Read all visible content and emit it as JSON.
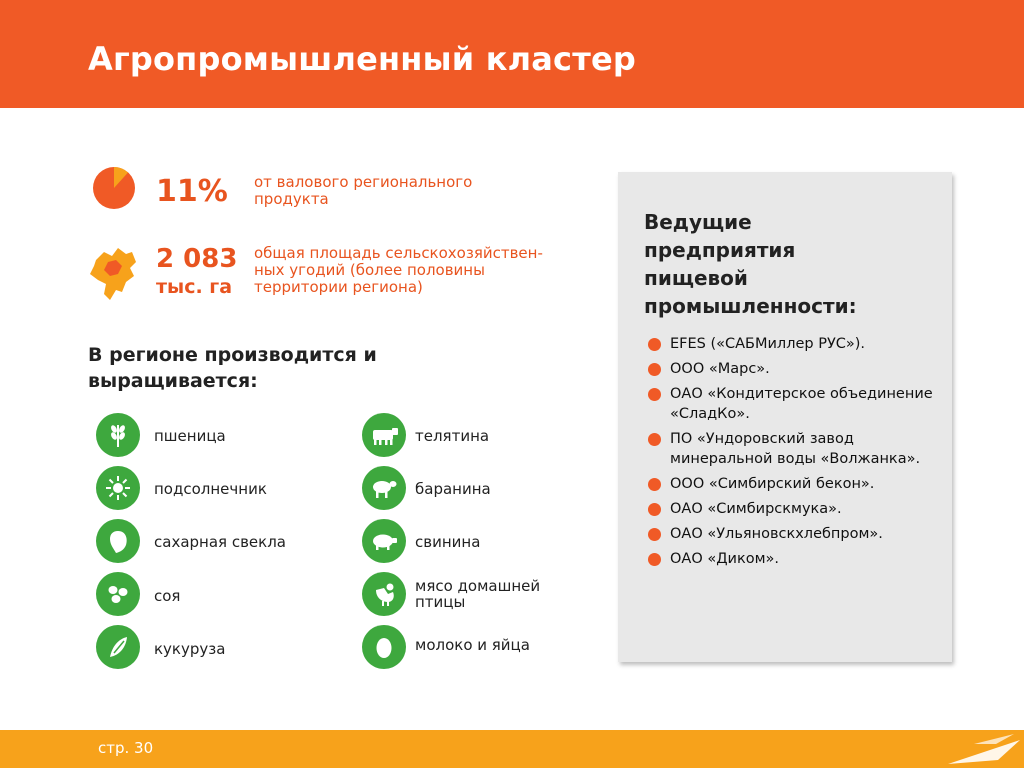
{
  "header": {
    "title": "Агропромышленный кластер"
  },
  "stats": {
    "gdp": {
      "value": "11%",
      "description": "от валового регионального продукта"
    },
    "land": {
      "value": "2 083",
      "unit": "тыс. га",
      "description": "общая площадь сельскохозяйствен-ных угодий (более половины территории региона)"
    }
  },
  "produce": {
    "title": "В регионе производится и выращивается:",
    "left": [
      {
        "label": "пшеница",
        "icon": "wheat-icon"
      },
      {
        "label": "подсолнечник",
        "icon": "sunflower-icon"
      },
      {
        "label": "сахарная свекла",
        "icon": "beet-icon"
      },
      {
        "label": "соя",
        "icon": "soy-icon"
      },
      {
        "label": "кукуруза",
        "icon": "corn-icon"
      }
    ],
    "right": [
      {
        "label": "телятина",
        "icon": "cow-icon"
      },
      {
        "label": "баранина",
        "icon": "sheep-icon"
      },
      {
        "label": "свинина",
        "icon": "pig-icon"
      },
      {
        "label": "мясо домашней птицы",
        "icon": "chicken-icon"
      },
      {
        "label": "молоко и яйца",
        "icon": "egg-icon"
      }
    ]
  },
  "companies": {
    "title": "Ведущие предприятия пищевой промышленности:",
    "items": [
      "EFES («САБМиллер РУС»).",
      "ООО «Марс».",
      "ОАО «Кондитерское объединение «СладКо».",
      "ПО «Ундоровский завод минеральной воды «Волжанка».",
      "ООО «Симбирский бекон».",
      "ОАО «Симбирскмука».",
      "ОАО «Ульяновскхлебпром».",
      "ОАО «Диком»."
    ]
  },
  "footer": {
    "page": "стр. 30"
  },
  "colors": {
    "accent": "#f05a26",
    "green": "#3ea83e",
    "footer": "#f7a21b",
    "panel": "#e8e8e8"
  }
}
